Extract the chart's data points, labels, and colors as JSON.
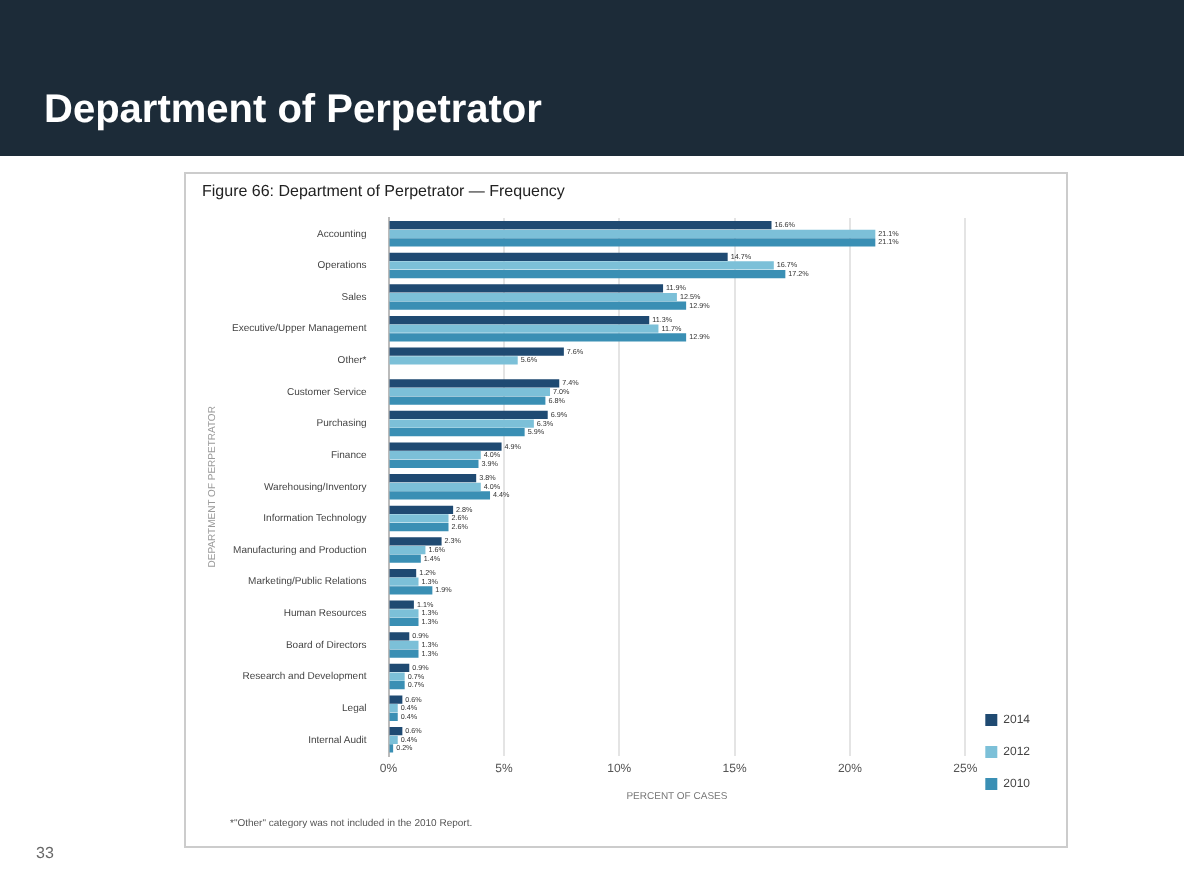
{
  "chart_data": {
    "type": "bar",
    "orientation": "horizontal",
    "title": "Department of Perpetrator",
    "subtitle": "Figure 66: Department of Perpetrator — Frequency",
    "xlabel": "PERCENT OF CASES",
    "ylabel": "DEPARTMENT OF PERPETRATOR",
    "categories": [
      "Accounting",
      "Operations",
      "Sales",
      "Executive/Upper Management",
      "Other*",
      "Customer Service",
      "Purchasing",
      "Finance",
      "Warehousing/Inventory",
      "Information Technology",
      "Manufacturing and Production",
      "Marketing/Public Relations",
      "Human Resources",
      "Board of Directors",
      "Research and Development",
      "Legal",
      "Internal Audit"
    ],
    "series": [
      {
        "name": "2014",
        "color": "#1f4a72",
        "values": [
          16.6,
          14.7,
          11.9,
          11.3,
          7.6,
          7.4,
          6.9,
          4.9,
          3.8,
          2.8,
          2.3,
          1.2,
          1.1,
          0.9,
          0.9,
          0.6,
          0.6
        ],
        "value_labels": [
          "16.6%",
          "14.7%",
          "11.9%",
          "11.3%",
          "7.6%",
          "7.4%",
          "6.9%",
          "4.9%",
          "3.8%",
          "2.8%",
          "2.3%",
          "1.2%",
          "1.1%",
          "0.9%",
          "0.9%",
          "0.6%",
          "0.6%"
        ]
      },
      {
        "name": "2012",
        "color": "#7cc0d8",
        "values": [
          21.1,
          16.7,
          12.5,
          11.7,
          5.6,
          7.0,
          6.3,
          4.0,
          4.0,
          2.6,
          1.6,
          1.3,
          1.3,
          1.3,
          0.7,
          0.4,
          0.4
        ],
        "value_labels": [
          "21.1%",
          "16.7%",
          "12.5%",
          "11.7%",
          "5.6%",
          "7.0%",
          "6.3%",
          "4.0%",
          "4.0%",
          "2.6%",
          "1.6%",
          "1.3%",
          "1.3%",
          "1.3%",
          "0.7%",
          "0.4%",
          "0.4%"
        ]
      },
      {
        "name": "2010",
        "color": "#3a8fb4",
        "values": [
          21.1,
          17.2,
          12.9,
          12.9,
          null,
          6.8,
          5.9,
          3.9,
          4.4,
          2.6,
          1.4,
          1.9,
          1.3,
          1.3,
          0.7,
          0.4,
          0.2
        ],
        "value_labels": [
          "21.1%",
          "17.2%",
          "12.9%",
          "12.9%",
          null,
          "6.8%",
          "5.9%",
          "3.9%",
          "4.4%",
          "2.6%",
          "1.4%",
          "1.9%",
          "1.3%",
          "1.3%",
          "0.7%",
          "0.4%",
          "0.2%"
        ]
      }
    ],
    "xlim": [
      0,
      25
    ],
    "xticks": [
      {
        "value": 0,
        "label": "0%"
      },
      {
        "value": 5,
        "label": "5%"
      },
      {
        "value": 10,
        "label": "10%"
      },
      {
        "value": 15,
        "label": "15%"
      },
      {
        "value": 20,
        "label": "20%"
      },
      {
        "value": 25,
        "label": "25%"
      }
    ],
    "grid": "x",
    "legend": "bottom right",
    "annotations": [
      "*\"Other\" category was not included in the 2010 Report.",
      "33"
    ]
  }
}
